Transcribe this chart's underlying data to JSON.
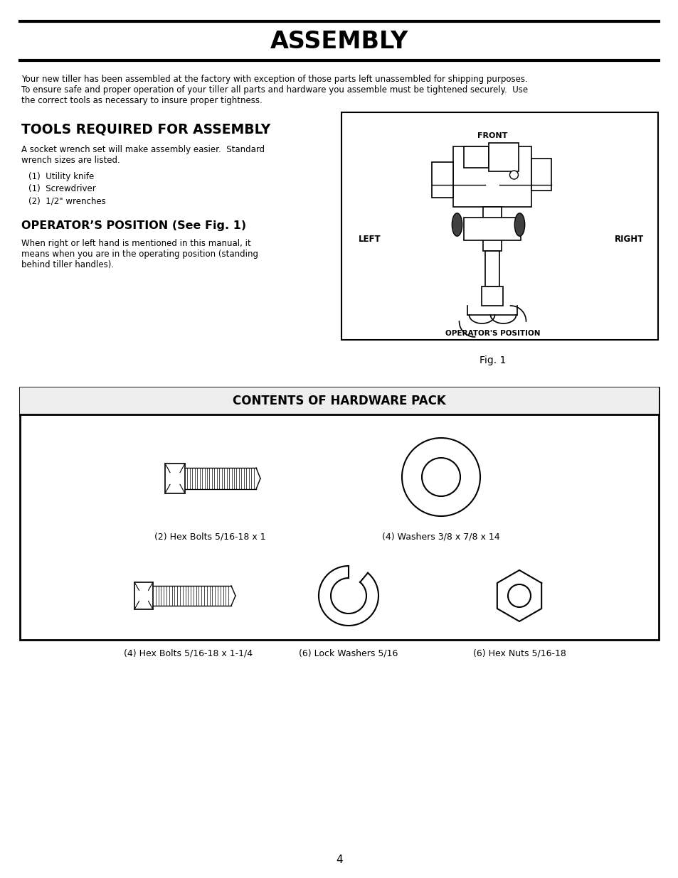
{
  "title": "ASSEMBLY",
  "bg_color": "#ffffff",
  "text_color": "#000000",
  "intro_text1": "Your new tiller has been assembled at the factory with exception of those parts left unassembled for shipping purposes.",
  "intro_text2": "To ensure safe and proper operation of your tiller all parts and hardware you assemble must be tightened securely.  Use",
  "intro_text3": "the correct tools as necessary to insure proper tightness.",
  "tools_heading": "TOOLS REQUIRED FOR ASSEMBLY",
  "tools_subtext1": "A socket wrench set will make assembly easier.  Standard",
  "tools_subtext2": "wrench sizes are listed.",
  "tools_list": [
    "(1)  Utility knife",
    "(1)  Screwdriver",
    "(2)  1/2\" wrenches"
  ],
  "ops_heading": "OPERATOR’S POSITION (See Fig. 1)",
  "ops_text1": "When right or left hand is mentioned in this manual, it",
  "ops_text2": "means when you are in the operating position (standing",
  "ops_text3": "behind tiller handles).",
  "fig1_label": "Fig. 1",
  "fig1_front": "FRONT",
  "fig1_left": "LEFT",
  "fig1_right": "RIGHT",
  "fig1_ops": "OPERATOR'S POSITION",
  "hw_title": "CONTENTS OF HARDWARE PACK",
  "hw_label1": "(2) Hex Bolts 5/16-18 x 1",
  "hw_label2": "(4) Washers 3/8 x 7/8 x 14",
  "hw_label3": "(4) Hex Bolts 5/16-18 x 1-1/4",
  "hw_label4": "(6) Lock Washers 5/16",
  "hw_label5": "(6) Hex Nuts 5/16-18",
  "page_number": "4"
}
